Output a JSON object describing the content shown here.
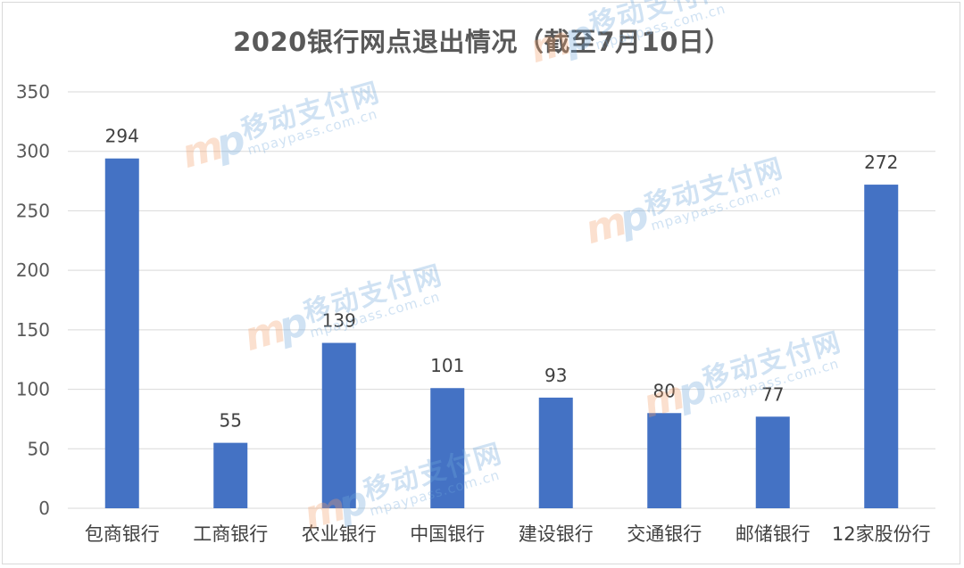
{
  "chart_data": {
    "type": "bar",
    "title": "2020银行网点退出情况（截至7月10日）",
    "categories": [
      "包商银行",
      "工商银行",
      "农业银行",
      "中国银行",
      "建设银行",
      "交通银行",
      "邮储银行",
      "12家股份行"
    ],
    "values": [
      294,
      55,
      139,
      101,
      93,
      80,
      77,
      272
    ],
    "data_labels": [
      "294",
      "55",
      "139",
      "101",
      "93",
      "80",
      "77",
      "272"
    ],
    "y_ticks": [
      "0",
      "50",
      "100",
      "150",
      "200",
      "250",
      "300",
      "350"
    ],
    "ylim": [
      0,
      350
    ],
    "ystep": 50,
    "grid": true,
    "legend": "none",
    "bar_color": "#4472c4",
    "grid_color": "#d9d9d9"
  },
  "watermark": {
    "cn": "移动支付网",
    "en": "mpaypass.com.cn",
    "logo": "mp"
  }
}
